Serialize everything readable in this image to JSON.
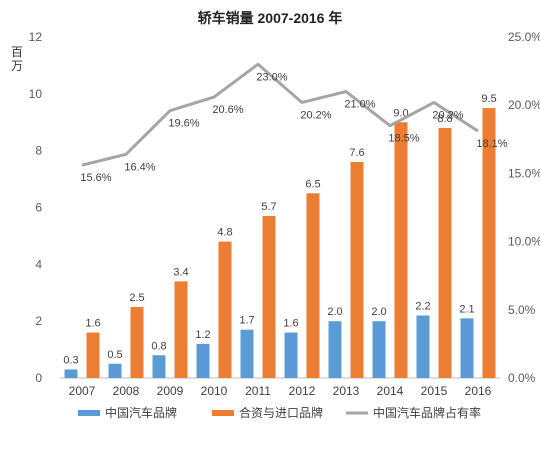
{
  "chart_data": {
    "type": "bar",
    "title": "轿车销量 2007-2016 年",
    "ylabel": "百万",
    "categories": [
      "2007",
      "2008",
      "2009",
      "2010",
      "2011",
      "2012",
      "2013",
      "2014",
      "2015",
      "2016"
    ],
    "ylim": [
      0,
      12
    ],
    "y_ticks": [
      "0",
      "2",
      "4",
      "6",
      "8",
      "10",
      "12"
    ],
    "y2lim": [
      0,
      25
    ],
    "y2_ticks": [
      "0.0%",
      "5.0%",
      "10.0%",
      "15.0%",
      "20.0%",
      "25.0%"
    ],
    "series": [
      {
        "name": "中国汽车品牌",
        "type": "bar",
        "axis": "left",
        "color": "#5b9bd5",
        "values": [
          0.3,
          0.5,
          0.8,
          1.2,
          1.7,
          1.6,
          2.0,
          2.0,
          2.2,
          2.1
        ],
        "labels": [
          "0.3",
          "0.5",
          "0.8",
          "1.2",
          "1.7",
          "1.6",
          "2.0",
          "2.0",
          "2.2",
          "2.1"
        ]
      },
      {
        "name": "合资与进口品牌",
        "type": "bar",
        "axis": "left",
        "color": "#ed7d31",
        "values": [
          1.6,
          2.5,
          3.4,
          4.8,
          5.7,
          6.5,
          7.6,
          9.0,
          8.8,
          9.5
        ],
        "labels": [
          "1.6",
          "2.5",
          "3.4",
          "4.8",
          "5.7",
          "6.5",
          "7.6",
          "9.0",
          "8.8",
          "9.5"
        ]
      },
      {
        "name": "中国汽车品牌占有率",
        "type": "line",
        "axis": "right",
        "color": "#a5a5a5",
        "values": [
          15.6,
          16.4,
          19.6,
          20.6,
          23.0,
          20.2,
          21.0,
          18.5,
          20.2,
          18.1
        ],
        "labels": [
          "15.6%",
          "16.4%",
          "19.6%",
          "20.6%",
          "23.0%",
          "20.2%",
          "21.0%",
          "18.5%",
          "20.2%",
          "18.1%"
        ]
      }
    ],
    "grid": false,
    "legend_position": "bottom"
  }
}
